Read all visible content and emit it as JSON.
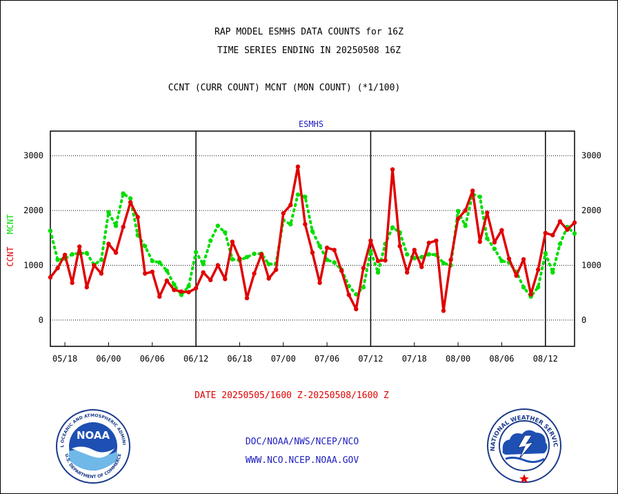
{
  "titles": {
    "line1": "RAP MODEL ESMHS DATA COUNTS for 16Z",
    "line2": "TIME SERIES ENDING IN 20250508 16Z",
    "line3": "CCNT (CURR COUNT) MCNT (MON COUNT) (*1/100)"
  },
  "date_line": "DATE 20250505/1600 Z-20250508/1600 Z",
  "footer": {
    "org": "DOC/NOAA/NWS/NCEP/NCO",
    "url": "WWW.NCO.NCEP.NOAA.GOV"
  },
  "logos": {
    "noaa_text": "NOAA",
    "noaa_ring_top": "NATIONAL OCEANIC AND ATMOSPHERIC ADMINISTRATION",
    "noaa_ring_bottom": "U.S. DEPARTMENT OF COMMERCE",
    "nws_ring_top": "NATIONAL WEATHER SERVICE"
  },
  "colors": {
    "ccnt": "#e00000",
    "mcnt": "#00dd00",
    "station_label": "#2020c0"
  },
  "chart_data": {
    "type": "line",
    "station": "ESMHS",
    "ylabel_left": "CCNT",
    "ylabel_right": "MCNT",
    "ylim": [
      -480,
      3450
    ],
    "yticks": [
      0,
      1000,
      2000,
      3000
    ],
    "grid": "dotted horizontal at y ticks",
    "xticks": [
      "05/18",
      "06/00",
      "06/06",
      "06/12",
      "06/18",
      "07/00",
      "07/06",
      "07/12",
      "07/18",
      "08/00",
      "08/06",
      "08/12"
    ],
    "day_separators_after_hour": [
      20,
      44,
      68
    ],
    "n_points": 73,
    "series": [
      {
        "name": "CCNT",
        "values": [
          780,
          950,
          1190,
          680,
          1340,
          600,
          1000,
          850,
          1390,
          1230,
          1700,
          2150,
          1880,
          850,
          880,
          430,
          720,
          550,
          520,
          510,
          580,
          870,
          730,
          1000,
          750,
          1430,
          1120,
          400,
          850,
          1200,
          760,
          920,
          1950,
          2100,
          2800,
          1750,
          1230,
          680,
          1320,
          1280,
          900,
          460,
          200,
          950,
          1450,
          1080,
          1090,
          2750,
          1350,
          870,
          1280,
          970,
          1410,
          1450,
          170,
          1100,
          1850,
          2000,
          2360,
          1430,
          1960,
          1420,
          1640,
          1120,
          810,
          1110,
          470,
          920,
          1590,
          1550,
          1800,
          1650,
          1780
        ]
      },
      {
        "name": "MCNT",
        "values": [
          1630,
          1100,
          1120,
          1200,
          1220,
          1220,
          1010,
          1100,
          1970,
          1720,
          2310,
          2220,
          1550,
          1350,
          1080,
          1050,
          900,
          650,
          460,
          620,
          1240,
          1020,
          1450,
          1720,
          1600,
          1110,
          1090,
          1150,
          1210,
          1210,
          1020,
          1030,
          1820,
          1750,
          2290,
          2250,
          1620,
          1350,
          1100,
          1050,
          920,
          620,
          470,
          600,
          1260,
          870,
          1390,
          1690,
          1600,
          1200,
          1130,
          1150,
          1200,
          1190,
          1040,
          1000,
          1990,
          1720,
          2300,
          2250,
          1490,
          1300,
          1080,
          1050,
          880,
          600,
          430,
          600,
          1220,
          870,
          1390,
          1700,
          1580
        ]
      }
    ]
  }
}
